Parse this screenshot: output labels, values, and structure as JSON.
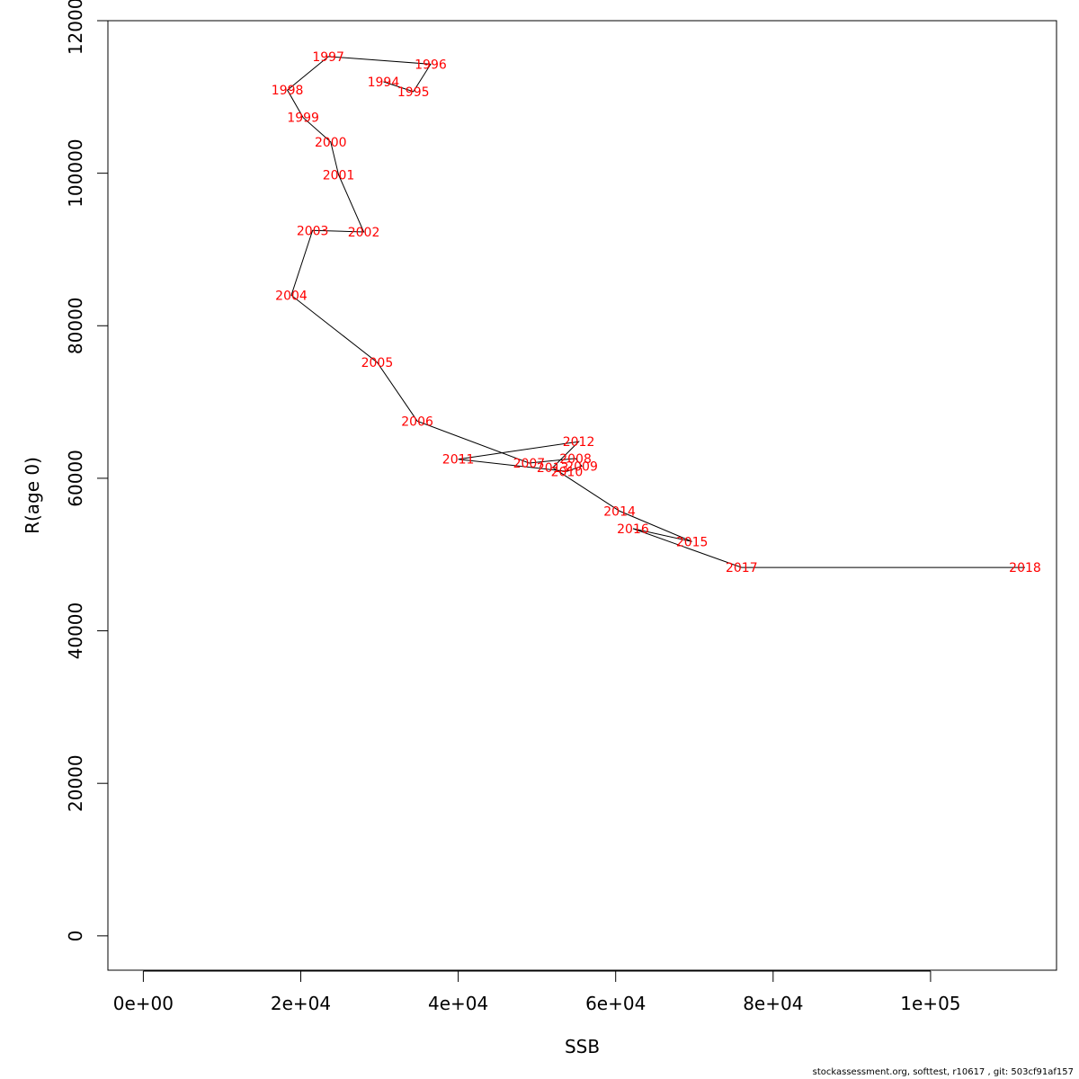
{
  "chart_data": {
    "type": "line",
    "title": "",
    "xlabel": "SSB",
    "ylabel": "R(age 0)",
    "xlim": [
      -4500,
      116000
    ],
    "ylim": [
      -4500,
      120000
    ],
    "x_ticks": [
      0,
      20000,
      40000,
      60000,
      80000,
      100000
    ],
    "x_tick_labels": [
      "0e+00",
      "2e+04",
      "4e+04",
      "6e+04",
      "8e+04",
      "1e+05"
    ],
    "y_ticks": [
      0,
      20000,
      40000,
      60000,
      80000,
      100000,
      120000
    ],
    "y_tick_labels": [
      "0",
      "20000",
      "40000",
      "60000",
      "80000",
      "100000",
      "120000"
    ],
    "line_color": "#000000",
    "label_color": "#ff0000",
    "points": [
      {
        "year": "1994",
        "ssb": 30500,
        "r": 112000
      },
      {
        "year": "1995",
        "ssb": 34300,
        "r": 110700
      },
      {
        "year": "1996",
        "ssb": 36500,
        "r": 114300
      },
      {
        "year": "1997",
        "ssb": 23500,
        "r": 115300
      },
      {
        "year": "1998",
        "ssb": 18300,
        "r": 110900
      },
      {
        "year": "1999",
        "ssb": 20300,
        "r": 107300
      },
      {
        "year": "2000",
        "ssb": 23800,
        "r": 104100
      },
      {
        "year": "2001",
        "ssb": 24800,
        "r": 99800
      },
      {
        "year": "2002",
        "ssb": 28000,
        "r": 92300
      },
      {
        "year": "2003",
        "ssb": 21500,
        "r": 92500
      },
      {
        "year": "2004",
        "ssb": 18800,
        "r": 84000
      },
      {
        "year": "2005",
        "ssb": 29700,
        "r": 75200
      },
      {
        "year": "2006",
        "ssb": 34800,
        "r": 67500
      },
      {
        "year": "2007",
        "ssb": 49000,
        "r": 62000
      },
      {
        "year": "2008",
        "ssb": 54900,
        "r": 62600
      },
      {
        "year": "2009",
        "ssb": 55700,
        "r": 61600
      },
      {
        "year": "2010",
        "ssb": 53800,
        "r": 60900
      },
      {
        "year": "2011",
        "ssb": 40000,
        "r": 62500
      },
      {
        "year": "2012",
        "ssb": 55300,
        "r": 64800
      },
      {
        "year": "2013",
        "ssb": 52000,
        "r": 61400
      },
      {
        "year": "2014",
        "ssb": 60500,
        "r": 55700
      },
      {
        "year": "2015",
        "ssb": 69700,
        "r": 51700
      },
      {
        "year": "2016",
        "ssb": 62200,
        "r": 53400
      },
      {
        "year": "2017",
        "ssb": 76000,
        "r": 48300
      },
      {
        "year": "2018",
        "ssb": 112000,
        "r": 48300
      }
    ]
  },
  "footer": {
    "text": "stockassessment.org, softtest, r10617 , git: 503cf91af157"
  }
}
